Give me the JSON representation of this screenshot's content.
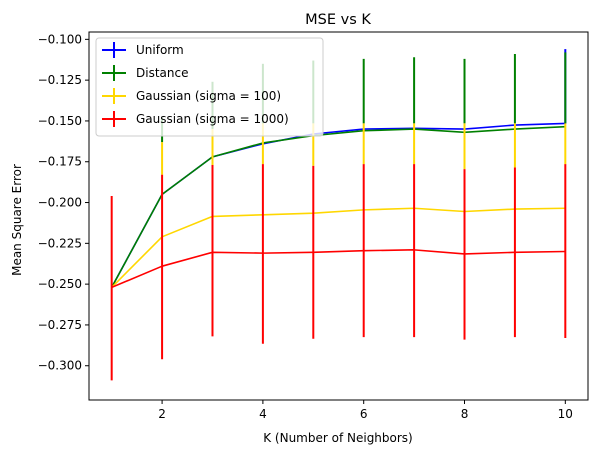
{
  "chart_data": {
    "type": "line",
    "title": "MSE vs K",
    "xlabel": "K (Number of Neighbors)",
    "ylabel": "Mean Square Error",
    "xlim": [
      0.55,
      10.45
    ],
    "ylim": [
      -0.321,
      -0.0955
    ],
    "xticks": [
      2,
      4,
      6,
      8,
      10
    ],
    "xtick_labels": [
      "2",
      "4",
      "6",
      "8",
      "10"
    ],
    "yticks": [
      -0.3,
      -0.275,
      -0.25,
      -0.225,
      -0.2,
      -0.175,
      -0.15,
      -0.125,
      -0.1
    ],
    "ytick_labels": [
      "−0.300",
      "−0.275",
      "−0.250",
      "−0.225",
      "−0.200",
      "−0.175",
      "−0.150",
      "−0.125",
      "−0.100"
    ],
    "grid": false,
    "legend_position": "top-left",
    "x": [
      1,
      2,
      3,
      4,
      5,
      6,
      7,
      8,
      9,
      10
    ],
    "series": [
      {
        "name": "Uniform",
        "color": "#0000ff",
        "values": [
          -0.252,
          -0.195,
          -0.172,
          -0.164,
          -0.158,
          -0.155,
          -0.1545,
          -0.155,
          -0.1525,
          -0.1515
        ],
        "err_low": [
          null,
          null,
          null,
          null,
          null,
          null,
          null,
          null,
          null,
          -0.1515
        ],
        "err_high": [
          null,
          null,
          null,
          null,
          null,
          null,
          null,
          -0.111,
          -0.108,
          -0.106
        ]
      },
      {
        "name": "Distance",
        "color": "#008000",
        "values": [
          -0.252,
          -0.195,
          -0.172,
          -0.1635,
          -0.159,
          -0.156,
          -0.155,
          -0.157,
          -0.155,
          -0.1535
        ],
        "err_low": [
          null,
          -0.163,
          -0.155,
          -0.1515,
          -0.1515,
          -0.1515,
          -0.1515,
          -0.1515,
          -0.1515,
          -0.1515
        ],
        "err_high": [
          null,
          -0.148,
          -0.126,
          -0.115,
          -0.113,
          -0.112,
          -0.111,
          -0.112,
          -0.109,
          -0.108
        ]
      },
      {
        "name": "Gaussian (sigma = 100)",
        "color": "#ffd700",
        "values": [
          -0.252,
          -0.221,
          -0.2085,
          -0.2075,
          -0.2065,
          -0.2045,
          -0.2035,
          -0.2055,
          -0.204,
          -0.2035
        ],
        "err_low": [
          null,
          -0.183,
          -0.177,
          -0.1765,
          -0.1775,
          -0.1765,
          -0.1765,
          -0.1795,
          -0.1785,
          -0.1765
        ],
        "err_high": [
          null,
          -0.163,
          -0.155,
          -0.1515,
          -0.1515,
          -0.1515,
          -0.1515,
          -0.1515,
          -0.1515,
          -0.1515
        ]
      },
      {
        "name": "Gaussian (sigma = 1000)",
        "color": "#ff0000",
        "values": [
          -0.252,
          -0.239,
          -0.2305,
          -0.231,
          -0.2305,
          -0.2295,
          -0.229,
          -0.2315,
          -0.2305,
          -0.23
        ],
        "err_low": [
          -0.309,
          -0.296,
          -0.282,
          -0.2865,
          -0.2835,
          -0.2825,
          -0.2825,
          -0.284,
          -0.2825,
          -0.283
        ],
        "err_high": [
          -0.196,
          -0.183,
          -0.177,
          -0.1765,
          -0.1775,
          -0.1765,
          -0.1765,
          -0.1795,
          -0.1785,
          -0.1765
        ]
      }
    ]
  }
}
